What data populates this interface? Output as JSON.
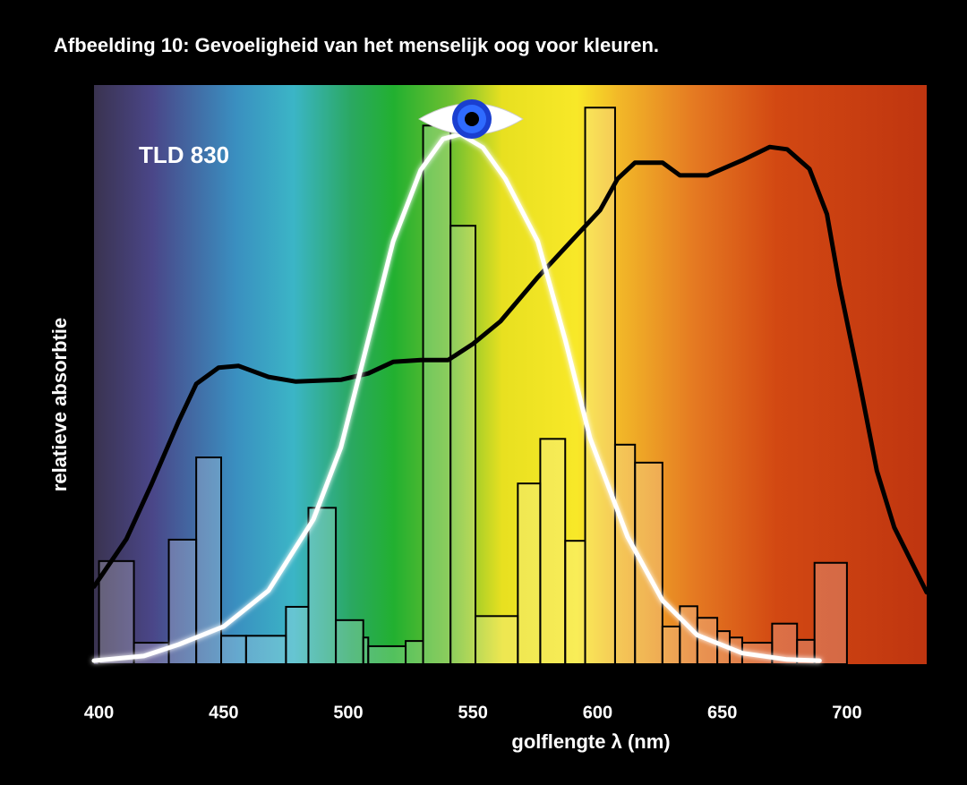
{
  "chart_data": {
    "type": "histogram",
    "title": "Afbeelding 10: Gevoeligheid van het menselijk oog voor kleuren.",
    "annotation": "TLD 830",
    "xlabel": "golflengte λ (nm)",
    "ylabel": "relatieve absorbtie",
    "xlim": [
      398,
      732
    ],
    "ylim": [
      0,
      100
    ],
    "xticks": [
      400,
      450,
      500,
      550,
      600,
      650,
      700
    ],
    "bins": [
      400,
      414,
      428,
      439,
      449,
      459,
      475,
      484,
      495,
      506,
      508,
      523,
      530,
      541,
      551,
      568,
      577,
      587,
      595,
      607,
      615,
      626,
      633,
      640,
      648,
      653,
      658,
      670,
      680,
      687,
      700
    ],
    "values": [
      17.8,
      3.7,
      21.5,
      35.7,
      4.9,
      4.9,
      9.9,
      27,
      7.6,
      4.6,
      3.1,
      4.0,
      93,
      75.7,
      8.3,
      31.2,
      38.9,
      21.3,
      96.1,
      37.9,
      34.8,
      6.5,
      10,
      8,
      5.7,
      4.6,
      3.7,
      7.0,
      4.2,
      17.5
    ],
    "color": "#000000",
    "series": [
      {
        "type": "line",
        "color": "#000000",
        "x": [
          398,
          411,
          421,
          432,
          439,
          448,
          456,
          468,
          479,
          497,
          508,
          518,
          529,
          540,
          550,
          561,
          576,
          590,
          601,
          608,
          615,
          626,
          633,
          644,
          658,
          669,
          676,
          685,
          692,
          697,
          705,
          712,
          719,
          732
        ],
        "values": [
          13.4,
          21.6,
          31,
          42,
          48.4,
          51.2,
          51.5,
          49.6,
          48.8,
          49.1,
          50.2,
          52.2,
          52.5,
          52.5,
          55.3,
          59.2,
          66.8,
          73.3,
          78.4,
          83.8,
          86.6,
          86.6,
          84.4,
          84.4,
          87,
          89.3,
          88.9,
          85.5,
          77.7,
          65.5,
          48.8,
          33.4,
          23.6,
          12.4
        ]
      },
      {
        "type": "line",
        "color": "#ffffff",
        "x": [
          398,
          418,
          432,
          450,
          468,
          486,
          497,
          508,
          518,
          529,
          538,
          545,
          554,
          563,
          576,
          587,
          597,
          612,
          626,
          640,
          658,
          676,
          689
        ],
        "values": [
          0.6,
          1.4,
          3.4,
          6.5,
          12.7,
          25,
          37.4,
          56,
          73,
          85.3,
          90.7,
          91.5,
          89.2,
          83.8,
          73,
          56,
          39,
          22,
          11,
          5,
          1.9,
          0.8,
          0.6
        ]
      }
    ]
  }
}
